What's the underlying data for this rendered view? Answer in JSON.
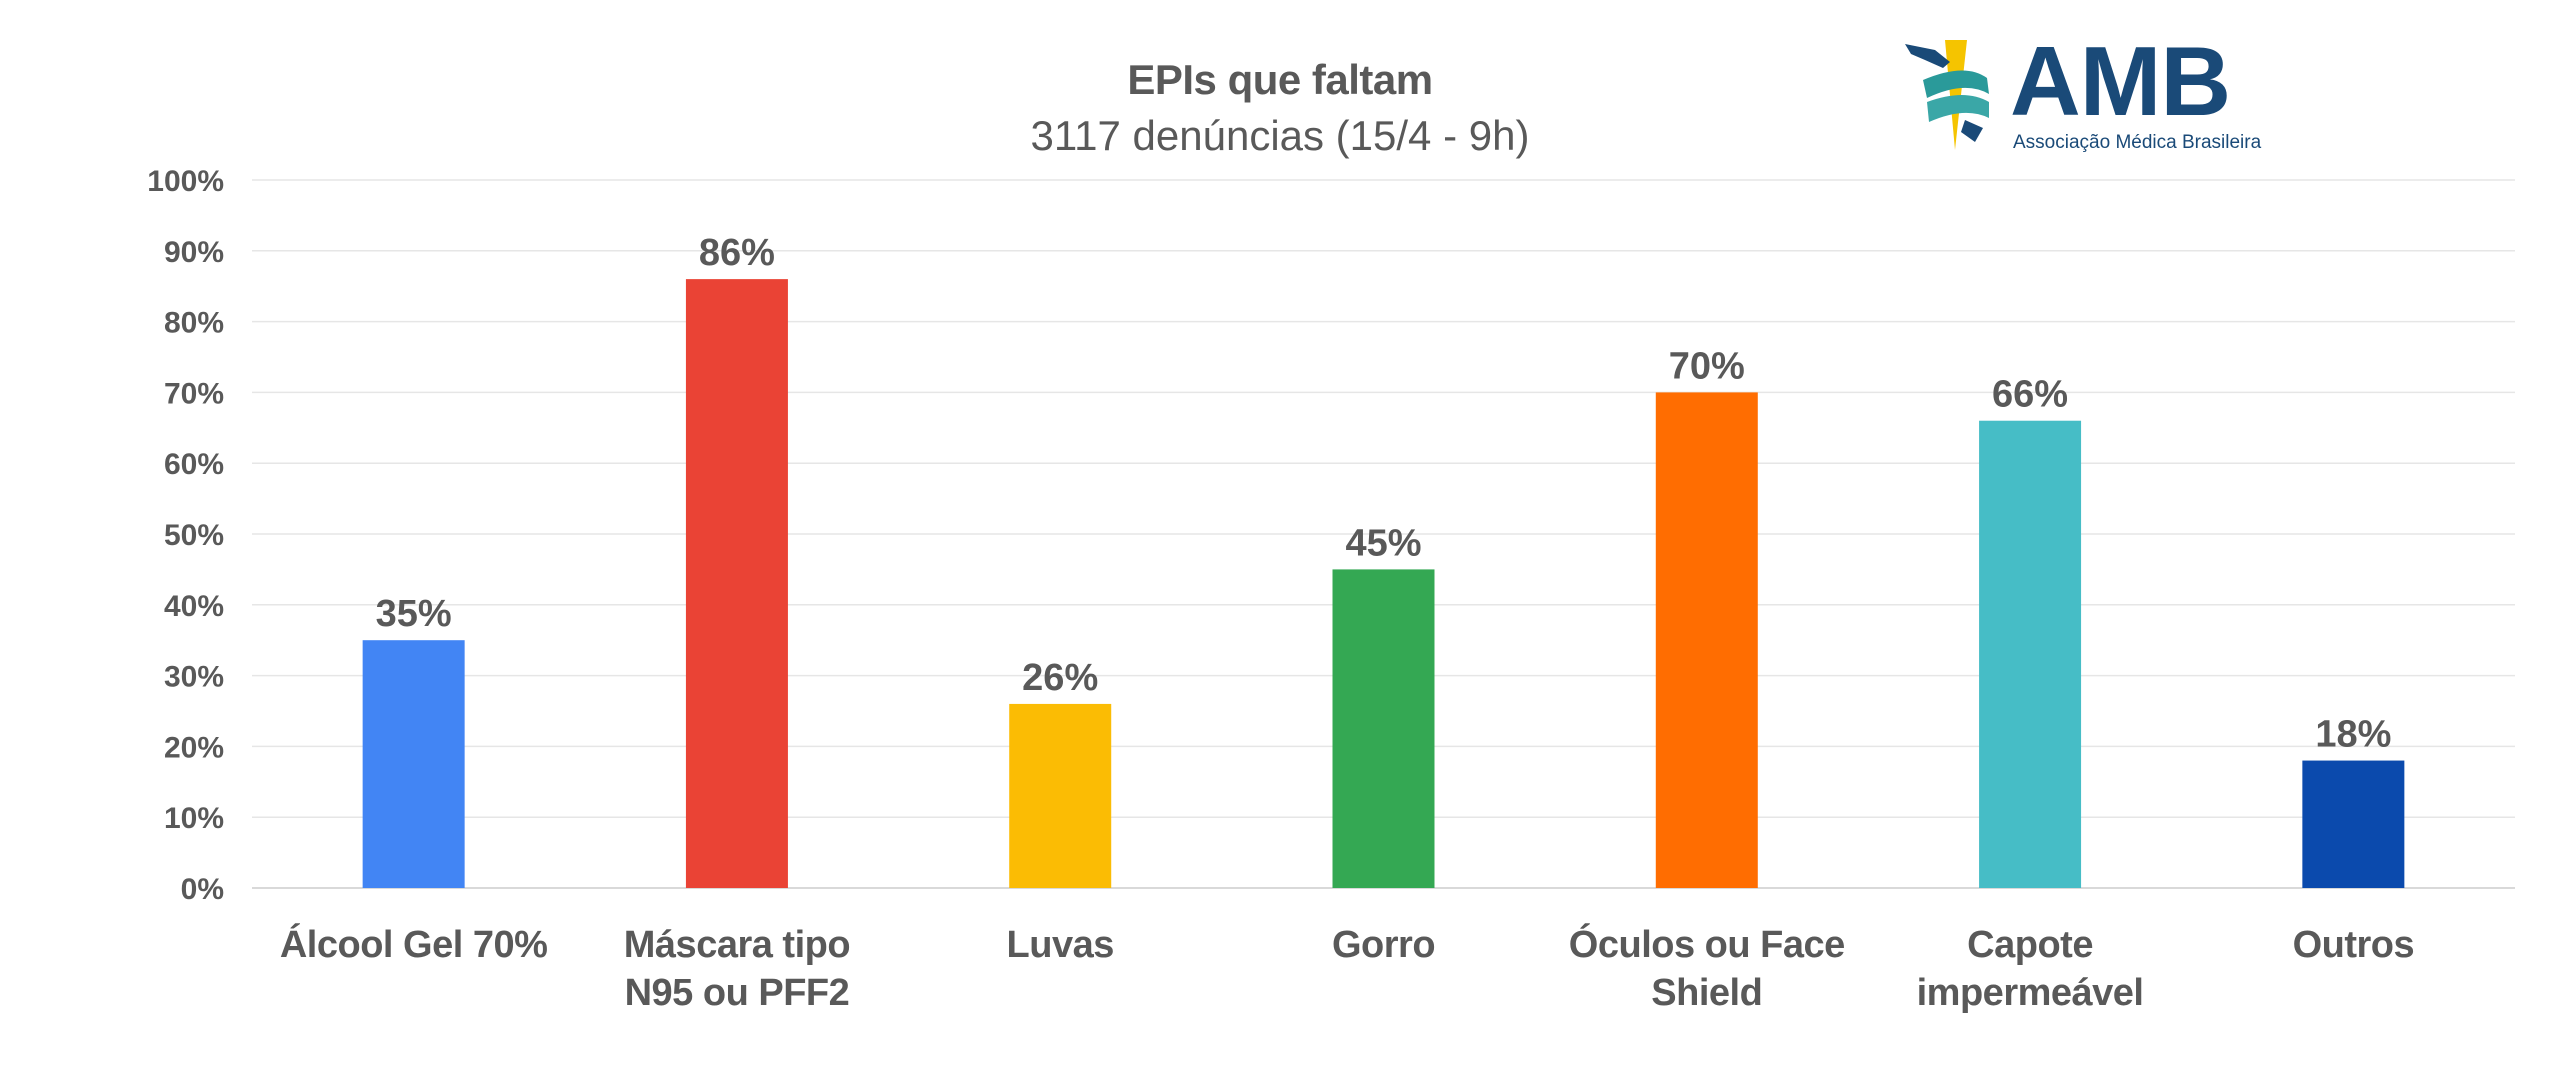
{
  "chart_data": {
    "type": "bar",
    "title": "EPIs que faltam",
    "subtitle": "3117 denúncias (15/4 - 9h)",
    "categories": [
      "Álcool Gel 70%",
      "Máscara tipo N95 ou PFF2",
      "Luvas",
      "Gorro",
      "Óculos ou Face Shield",
      "Capote impermeável",
      "Outros"
    ],
    "category_lines": [
      [
        "Álcool Gel 70%"
      ],
      [
        "Máscara tipo",
        "N95 ou PFF2"
      ],
      [
        "Luvas"
      ],
      [
        "Gorro"
      ],
      [
        "Óculos ou Face",
        "Shield"
      ],
      [
        "Capote",
        "impermeável"
      ],
      [
        "Outros"
      ]
    ],
    "values": [
      35,
      86,
      26,
      45,
      70,
      66,
      18
    ],
    "data_labels": [
      "35%",
      "86%",
      "26%",
      "45%",
      "70%",
      "66%",
      "18%"
    ],
    "colors": [
      "#4285f4",
      "#ea4335",
      "#fbbc04",
      "#34a853",
      "#ff6d01",
      "#46bdc6",
      "#0b4aad"
    ],
    "xlabel": "",
    "ylabel": "",
    "ylim": [
      0,
      100
    ],
    "yticks": [
      0,
      10,
      20,
      30,
      40,
      50,
      60,
      70,
      80,
      90,
      100
    ],
    "ytick_labels": [
      "0%",
      "10%",
      "20%",
      "30%",
      "40%",
      "50%",
      "60%",
      "70%",
      "80%",
      "90%",
      "100%"
    ],
    "grid": true,
    "legend": "none"
  },
  "logo": {
    "name": "AMB",
    "subtitle": "Associação Médica Brasileira",
    "colors": {
      "navy": "#1a4a78",
      "teal": "#2a9a9a",
      "yellow": "#f5c400"
    }
  }
}
